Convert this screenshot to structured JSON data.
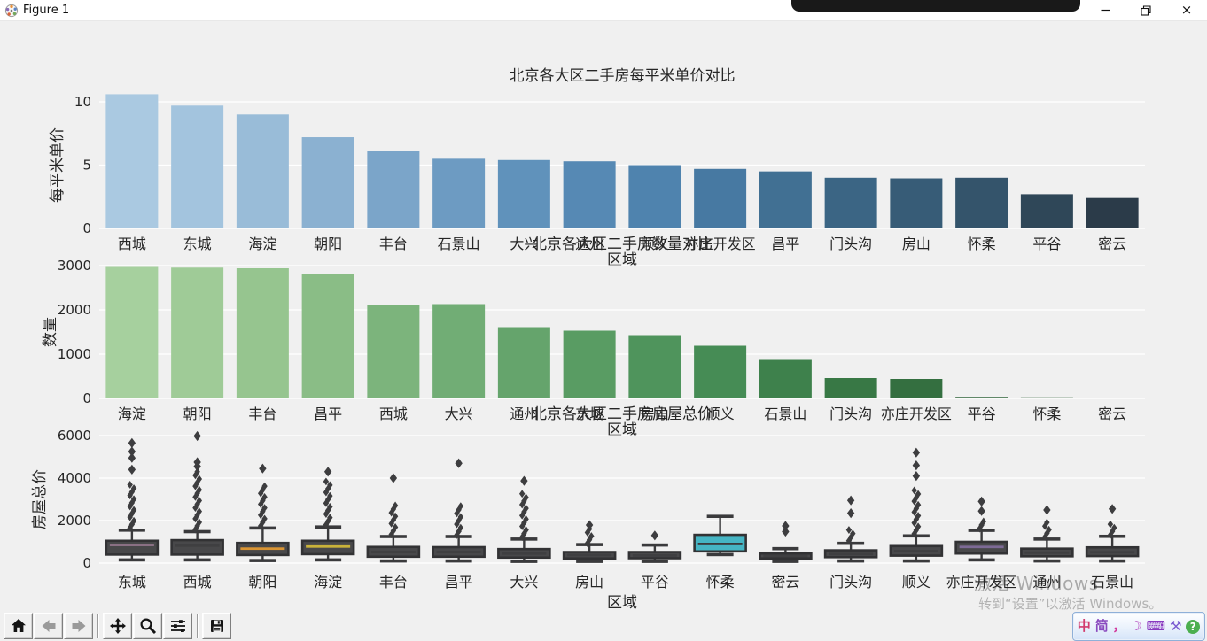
{
  "window": {
    "title": "Figure 1",
    "controls": {
      "minimize": "minimize",
      "restore": "restore-down",
      "close": "close"
    }
  },
  "watermark": {
    "line1": "激活 Windows",
    "line2": "转到“设置”以激活 Windows。"
  },
  "toolbar": {
    "buttons": [
      "home",
      "back",
      "forward",
      "pan",
      "zoom-to-rect",
      "configure-subplots",
      "save"
    ]
  },
  "ime_bar": {
    "items": [
      {
        "name": "chinese-mode-icon",
        "glyph": "中",
        "color": "#d23b6d"
      },
      {
        "name": "simplified-icon",
        "glyph": "简",
        "color": "#8a4bbf"
      },
      {
        "name": "punctuation-icon",
        "glyph": "，",
        "color": "#d23b9d"
      },
      {
        "name": "fullwidth-moon-icon",
        "glyph": "☽",
        "color": "#b44bc0"
      },
      {
        "name": "soft-keyboard-icon",
        "glyph": "⌨",
        "color": "#8a3ac0"
      },
      {
        "name": "wrench-icon",
        "glyph": "⚒",
        "color": "#7a5bd0"
      },
      {
        "name": "help-icon",
        "glyph": "?",
        "color": "#ffffff",
        "bg": "#4caf50"
      }
    ]
  },
  "chart_data": [
    {
      "type": "bar",
      "title": "北京各大区二手房每平米单价对比",
      "xlabel": "区域",
      "ylabel": "每平米单价",
      "grid": true,
      "ylim": [
        0,
        11
      ],
      "yticks": [
        0,
        5,
        10
      ],
      "categories": [
        "西城",
        "东城",
        "海淀",
        "朝阳",
        "丰台",
        "石景山",
        "大兴",
        "通州",
        "顺义",
        "亦庄开发区",
        "昌平",
        "门头沟",
        "房山",
        "怀柔",
        "平谷",
        "密云"
      ],
      "values": [
        10.6,
        9.7,
        9.0,
        7.2,
        6.1,
        5.5,
        5.4,
        5.3,
        5.0,
        4.7,
        4.5,
        4.0,
        3.95,
        4.0,
        2.7,
        2.4
      ],
      "colors": [
        "#aac9e1",
        "#a3c4de",
        "#99bcd8",
        "#8bb1d1",
        "#7ba5c9",
        "#6d9bc2",
        "#6092bb",
        "#5689b4",
        "#4f83ae",
        "#4779a2",
        "#417093",
        "#3b6584",
        "#375c77",
        "#34546b",
        "#2f4758",
        "#2b3b49"
      ]
    },
    {
      "type": "bar",
      "title": "北京各大区二手房数量对比",
      "xlabel": "区域",
      "ylabel": "数量",
      "grid": true,
      "ylim": [
        0,
        3000
      ],
      "yticks": [
        0,
        1000,
        2000,
        3000
      ],
      "categories": [
        "海淀",
        "朝阳",
        "丰台",
        "昌平",
        "西城",
        "大兴",
        "通州",
        "东城",
        "房山",
        "顺义",
        "石景山",
        "门头沟",
        "亦庄开发区",
        "平谷",
        "怀柔",
        "密云"
      ],
      "values": [
        2970,
        2955,
        2940,
        2820,
        2120,
        2130,
        1610,
        1530,
        1430,
        1190,
        870,
        460,
        440,
        35,
        25,
        18
      ],
      "colors": [
        "#a6d09e",
        "#9fcb97",
        "#96c58f",
        "#8abd86",
        "#7cb47c",
        "#71ad75",
        "#65a46c",
        "#599c63",
        "#4f945c",
        "#468c55",
        "#3e814c",
        "#387845",
        "#346f40",
        "#30663a",
        "#2d5e35",
        "#2a5631"
      ]
    },
    {
      "type": "box",
      "title": "北京各大区二手房房屋总价",
      "xlabel": "区域",
      "ylabel": "房屋总价",
      "grid": true,
      "ylim": [
        0,
        6200
      ],
      "yticks": [
        0,
        2000,
        4000,
        6000
      ],
      "categories": [
        "东城",
        "西城",
        "朝阳",
        "海淀",
        "丰台",
        "昌平",
        "大兴",
        "房山",
        "平谷",
        "怀柔",
        "密云",
        "门头沟",
        "顺义",
        "亦庄开发区",
        "通州",
        "石景山"
      ],
      "boxes": [
        {
          "wlo": 150,
          "q1": 400,
          "med": 850,
          "q3": 1050,
          "whi": 1550,
          "median_color": "#8a7084",
          "fill": null,
          "outlier_col": [
            1650,
            3800
          ],
          "outliers": [
            4400,
            4950,
            5250,
            5650
          ]
        },
        {
          "wlo": 150,
          "q1": 400,
          "med": 820,
          "q3": 1080,
          "whi": 1480,
          "median_color": null,
          "fill": null,
          "outlier_col": [
            1580,
            4300
          ],
          "outliers": [
            4550,
            4750,
            5980
          ]
        },
        {
          "wlo": 120,
          "q1": 380,
          "med": 680,
          "q3": 950,
          "whi": 1650,
          "median_color": "#d99433",
          "fill": null,
          "outlier_col": [
            1750,
            3650
          ],
          "outliers": [
            4450
          ]
        },
        {
          "wlo": 150,
          "q1": 420,
          "med": 780,
          "q3": 1050,
          "whi": 1700,
          "median_color": "#c9b23a",
          "fill": null,
          "outlier_col": [
            1800,
            3950
          ],
          "outliers": [
            4300
          ]
        },
        {
          "wlo": 100,
          "q1": 300,
          "med": 520,
          "q3": 760,
          "whi": 1250,
          "median_color": null,
          "fill": null,
          "outlier_col": [
            1350,
            2830
          ],
          "outliers": [
            4000
          ]
        },
        {
          "wlo": 100,
          "q1": 300,
          "med": 520,
          "q3": 750,
          "whi": 1250,
          "median_color": null,
          "fill": null,
          "outlier_col": [
            1320,
            2750
          ],
          "outliers": [
            4700
          ]
        },
        {
          "wlo": 80,
          "q1": 260,
          "med": 450,
          "q3": 660,
          "whi": 1130,
          "median_color": null,
          "fill": null,
          "outlier_col": [
            1220,
            3300
          ],
          "outliers": [
            3870
          ]
        },
        {
          "wlo": 80,
          "q1": 220,
          "med": 380,
          "q3": 520,
          "whi": 870,
          "median_color": null,
          "fill": null,
          "outlier_col": [
            930,
            1700
          ],
          "outliers": [
            1790
          ]
        },
        {
          "wlo": 80,
          "q1": 230,
          "med": 360,
          "q3": 520,
          "whi": 850,
          "median_color": null,
          "fill": null,
          "outlier_col": null,
          "outliers": [
            1300
          ]
        },
        {
          "wlo": 400,
          "q1": 550,
          "med": 900,
          "q3": 1330,
          "whi": 2200,
          "median_color": "#3a3a3c",
          "fill": "#45b5c4",
          "outlier_col": null,
          "outliers": []
        },
        {
          "wlo": 80,
          "q1": 220,
          "med": 330,
          "q3": 450,
          "whi": 680,
          "median_color": null,
          "fill": null,
          "outlier_col": null,
          "outliers": [
            1480,
            1750
          ]
        },
        {
          "wlo": 100,
          "q1": 280,
          "med": 430,
          "q3": 600,
          "whi": 930,
          "median_color": null,
          "fill": null,
          "outlier_col": [
            1050,
            1650
          ],
          "outliers": [
            2350,
            2950
          ]
        },
        {
          "wlo": 100,
          "q1": 350,
          "med": 560,
          "q3": 800,
          "whi": 1280,
          "median_color": null,
          "fill": null,
          "outlier_col": [
            1380,
            3550
          ],
          "outliers": [
            4100,
            4600,
            5200
          ]
        },
        {
          "wlo": 150,
          "q1": 450,
          "med": 760,
          "q3": 1000,
          "whi": 1540,
          "median_color": "#7d6a96",
          "fill": null,
          "outlier_col": [
            1620,
            2100
          ],
          "outliers": [
            2450,
            2900
          ]
        },
        {
          "wlo": 100,
          "q1": 320,
          "med": 490,
          "q3": 680,
          "whi": 1130,
          "median_color": null,
          "fill": null,
          "outlier_col": [
            1230,
            2050
          ],
          "outliers": [
            2500
          ]
        },
        {
          "wlo": 100,
          "q1": 330,
          "med": 510,
          "q3": 740,
          "whi": 1260,
          "median_color": null,
          "fill": null,
          "outlier_col": [
            1320,
            1950
          ],
          "outliers": [
            2550
          ]
        }
      ]
    }
  ]
}
